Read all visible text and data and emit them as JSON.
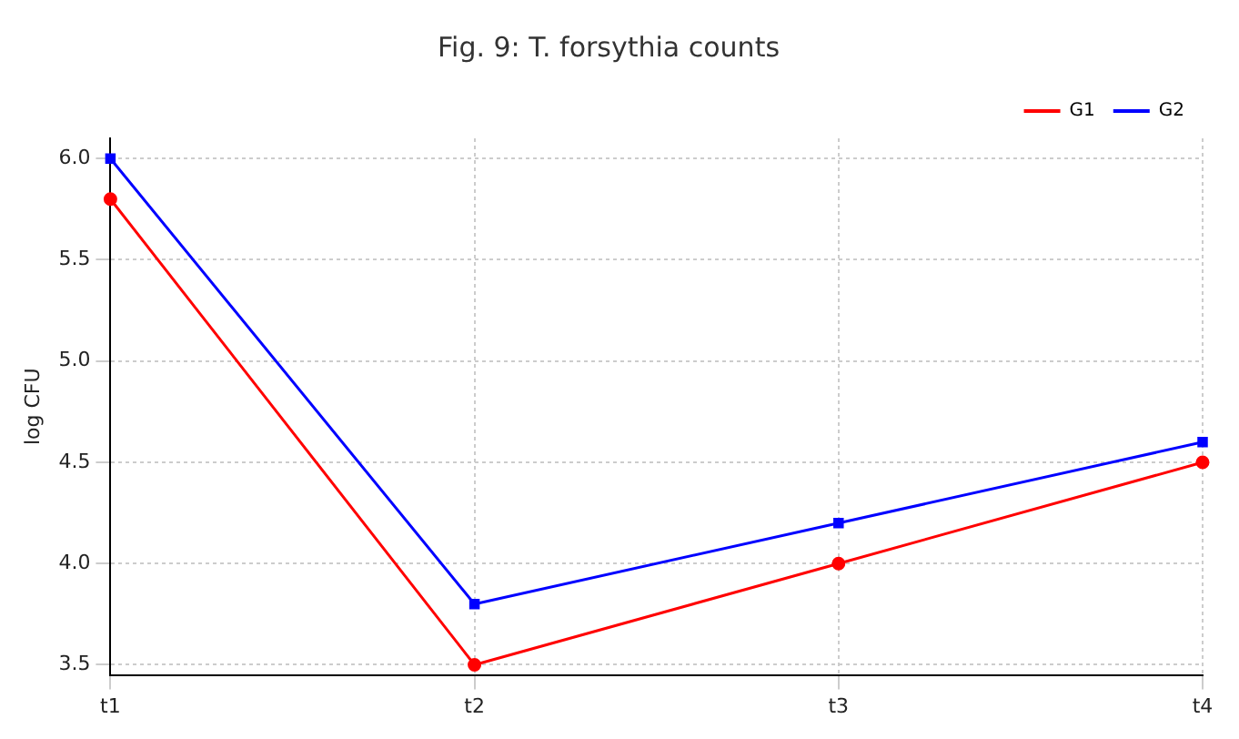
{
  "chart_data": {
    "type": "line",
    "title": "Fig. 9: T. forsythia counts",
    "ylabel": "log CFU",
    "categories": [
      "t1",
      "t2",
      "t3",
      "t4"
    ],
    "series": [
      {
        "name": "G1",
        "color": "#ff0000",
        "marker": "circle",
        "values": [
          5.8,
          3.5,
          4.0,
          4.5
        ]
      },
      {
        "name": "G2",
        "color": "#0000ff",
        "marker": "square",
        "values": [
          6.0,
          3.8,
          4.2,
          4.6
        ]
      }
    ],
    "ylim": [
      3.45,
      6.1
    ],
    "yticks": [
      {
        "value": 3.5,
        "label": "3.5"
      },
      {
        "value": 4,
        "label": "4.0"
      },
      {
        "value": 4.5,
        "label": "4.5"
      },
      {
        "value": 5,
        "label": "5.0"
      },
      {
        "value": 5.5,
        "label": "5.5"
      },
      {
        "value": 6,
        "label": "6.0"
      }
    ],
    "grid": true,
    "legend": "top right",
    "line_style": "solid"
  }
}
